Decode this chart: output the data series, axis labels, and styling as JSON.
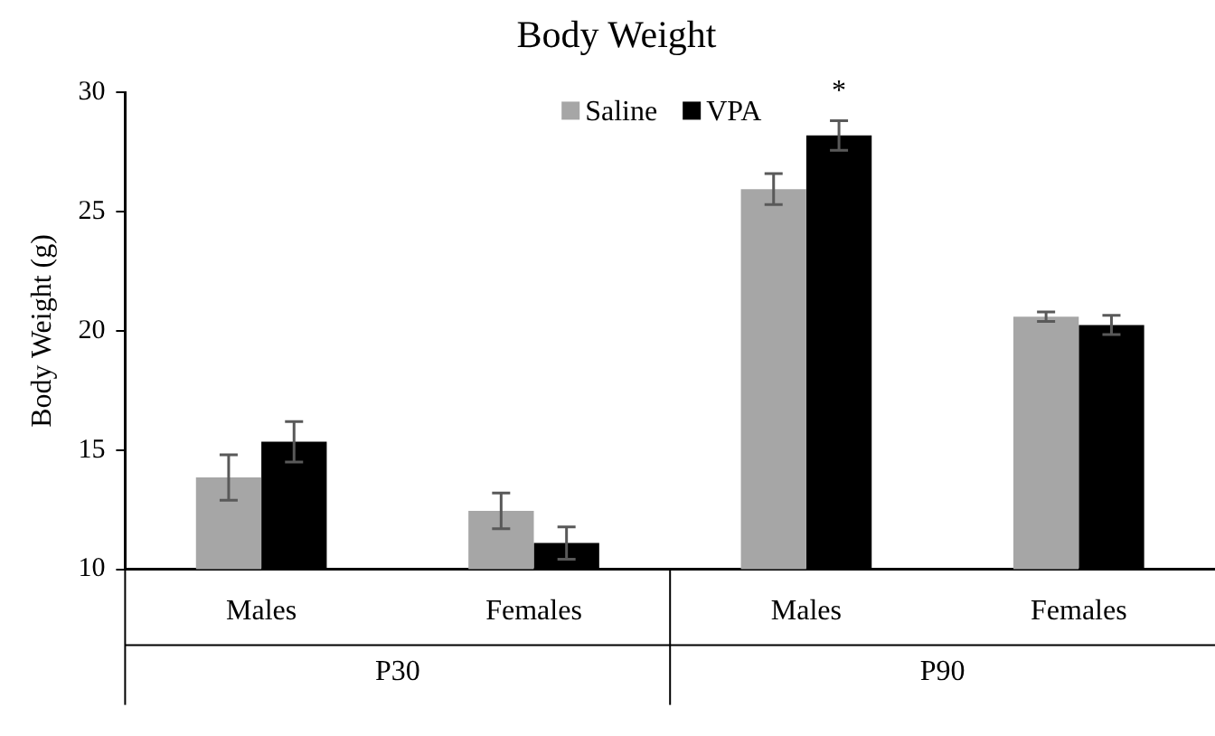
{
  "chart_data": {
    "type": "bar",
    "title": "Body Weight",
    "ylabel": "Body Weight (g)",
    "categories": [
      "Males",
      "Females",
      "Males",
      "Females"
    ],
    "series": [
      {
        "name": "Saline",
        "color": "#a6a6a6",
        "values": [
          13.85,
          12.45,
          25.95,
          20.6
        ],
        "errors": [
          0.95,
          0.75,
          0.65,
          0.2
        ]
      },
      {
        "name": "VPA",
        "color": "#000000",
        "values": [
          15.35,
          11.1,
          28.2,
          20.25
        ],
        "errors": [
          0.85,
          0.68,
          0.62,
          0.4
        ]
      }
    ],
    "annotations": [
      "P30",
      "P90",
      "*"
    ],
    "ylim": [
      10,
      30
    ],
    "yticks": [
      10,
      15,
      20,
      25,
      30
    ],
    "grid": false,
    "legend": "top"
  }
}
